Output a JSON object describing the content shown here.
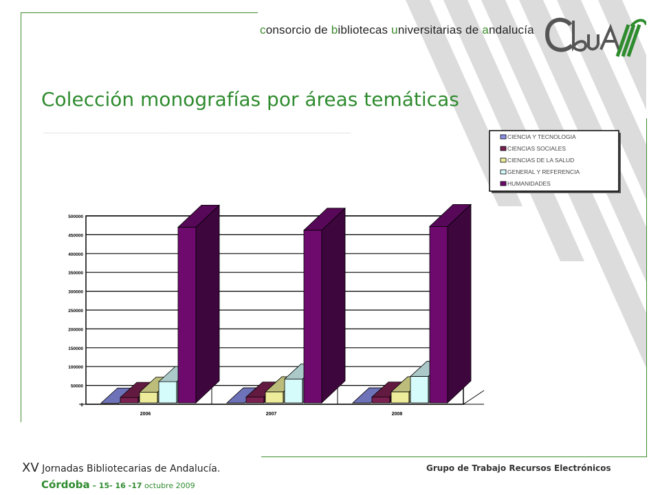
{
  "header": {
    "parts": [
      {
        "text": "c",
        "hl": true
      },
      {
        "text": "onsorcio de ",
        "hl": false
      },
      {
        "text": "b",
        "hl": true
      },
      {
        "text": "ibliotecas ",
        "hl": false
      },
      {
        "text": "u",
        "hl": true
      },
      {
        "text": "niversitarias de ",
        "hl": false
      },
      {
        "text": "a",
        "hl": true
      },
      {
        "text": "ndalucía",
        "hl": false
      }
    ],
    "logo_text": "CbuA"
  },
  "title": "Colección monografías por áreas temáticas",
  "footer": {
    "xv": "XV",
    "jornadas": " Jornadas Bibliotecarias de Andalucía.",
    "city": "Córdoba",
    "dates_sep": " – ",
    "dates": "15- 16 -17",
    "month": " octubre 2009",
    "group": "Grupo de Trabajo Recursos Electrónicos"
  },
  "colors": {
    "green": "#2e8b2e",
    "ciencia": "#8a8fe6",
    "sociales": "#7a2050",
    "salud": "#ecec9a",
    "general": "#d6fbfb",
    "humanidades": "#6e0a6e"
  },
  "chart_data": {
    "type": "bar",
    "categories": [
      "2006",
      "2007",
      "2008"
    ],
    "series": [
      {
        "name": "CIENCIA Y TECNOLOGIA",
        "values": [
          3000,
          3500,
          3500
        ]
      },
      {
        "name": "CIENCIAS SOCIALES",
        "values": [
          18000,
          19000,
          19000
        ]
      },
      {
        "name": "CIENCIAS DE LA SALUD",
        "values": [
          32000,
          33000,
          33000
        ]
      },
      {
        "name": "GENERAL Y REFERENCIA",
        "values": [
          60000,
          67000,
          74000
        ]
      },
      {
        "name": "HUMANIDADES",
        "values": [
          470000,
          462000,
          472000
        ]
      }
    ],
    "ylim": [
      0,
      500000
    ],
    "yticks": [
      "0",
      "50000",
      "100000",
      "150000",
      "200000",
      "250000",
      "300000",
      "350000",
      "400000",
      "450000",
      "500000"
    ],
    "grid": true,
    "legend_position": "top-right",
    "title": "",
    "xlabel": "",
    "ylabel": ""
  }
}
